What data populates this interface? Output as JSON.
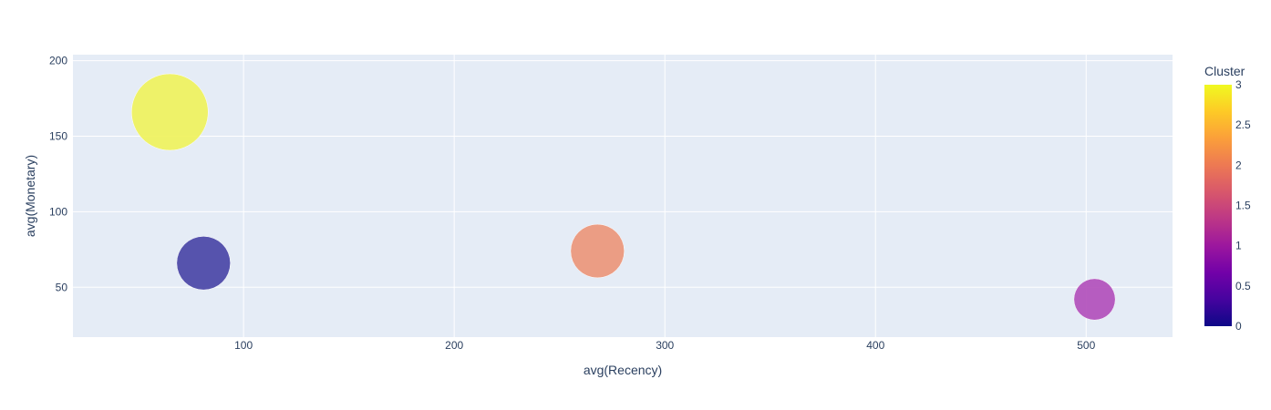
{
  "chart_data": {
    "type": "scatter",
    "xlabel": "avg(Recency)",
    "ylabel": "avg(Monetary)",
    "xlim": [
      19,
      541
    ],
    "ylim": [
      17,
      204
    ],
    "xticks": [
      100,
      200,
      300,
      400,
      500
    ],
    "yticks": [
      50,
      100,
      150,
      200
    ],
    "grid": true,
    "points": [
      {
        "x": 65,
        "y": 166,
        "cluster": 3,
        "size": 1.0,
        "color": "#eff25c"
      },
      {
        "x": 81,
        "y": 66,
        "cluster": 0,
        "size": 0.7,
        "color": "#4a45a6"
      },
      {
        "x": 268,
        "y": 74,
        "cluster": 2,
        "size": 0.7,
        "color": "#ec9679"
      },
      {
        "x": 504,
        "y": 42,
        "cluster": 1,
        "size": 0.54,
        "color": "#b24fbb"
      }
    ],
    "colorbar": {
      "title": "Cluster",
      "range": [
        0,
        3
      ],
      "ticks": [
        "0",
        "0.5",
        "1",
        "1.5",
        "2",
        "2.5",
        "3"
      ],
      "colors": [
        "#0d0887",
        "#46039f",
        "#7201a8",
        "#9c179e",
        "#bd3786",
        "#d8576b",
        "#ed7953",
        "#fb9f3a",
        "#fdca26",
        "#f0f921"
      ]
    },
    "plot_background": "#e5ecf6"
  }
}
